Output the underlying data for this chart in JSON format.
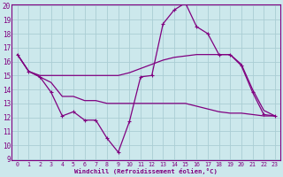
{
  "bg_color": "#cce8ec",
  "line_color": "#800080",
  "grid_color": "#aacdd4",
  "xlabel": "Windchill (Refroidissement éolien,°C)",
  "xlim": [
    -0.5,
    23.5
  ],
  "ylim": [
    9,
    20
  ],
  "yticks": [
    9,
    10,
    11,
    12,
    13,
    14,
    15,
    16,
    17,
    18,
    19,
    20
  ],
  "xticks": [
    0,
    1,
    2,
    3,
    4,
    5,
    6,
    7,
    8,
    9,
    10,
    11,
    12,
    13,
    14,
    15,
    16,
    17,
    18,
    19,
    20,
    21,
    22,
    23
  ],
  "s1_x": [
    0,
    1,
    2,
    3,
    4,
    5,
    6,
    7,
    8,
    9,
    10,
    11,
    12,
    13,
    14,
    15,
    16,
    17,
    18,
    19,
    20,
    21,
    22,
    23
  ],
  "s1_y": [
    16.5,
    15.3,
    14.9,
    13.8,
    12.1,
    12.4,
    11.8,
    11.8,
    10.5,
    9.5,
    11.7,
    14.9,
    15.0,
    18.7,
    19.7,
    20.2,
    18.5,
    18.0,
    16.5,
    16.5,
    15.7,
    13.8,
    12.2,
    12.1
  ],
  "s2_x": [
    0,
    1,
    2,
    3,
    4,
    5,
    6,
    7,
    8,
    9,
    10,
    11,
    12,
    13,
    14,
    15,
    16,
    17,
    18,
    19,
    20,
    21,
    22,
    23
  ],
  "s2_y": [
    16.5,
    15.3,
    15.0,
    15.0,
    15.0,
    15.0,
    15.0,
    15.0,
    15.0,
    15.0,
    15.2,
    15.5,
    15.8,
    16.1,
    16.3,
    16.4,
    16.5,
    16.5,
    16.5,
    16.5,
    15.8,
    14.0,
    12.5,
    12.1
  ],
  "s3_x": [
    0,
    1,
    2,
    3,
    4,
    5,
    6,
    7,
    8,
    9,
    10,
    11,
    12,
    13,
    14,
    15,
    16,
    17,
    18,
    19,
    20,
    21,
    22,
    23
  ],
  "s3_y": [
    16.5,
    15.3,
    14.9,
    14.5,
    13.5,
    13.5,
    13.2,
    13.2,
    13.0,
    13.0,
    13.0,
    13.0,
    13.0,
    13.0,
    13.0,
    13.0,
    12.8,
    12.6,
    12.4,
    12.3,
    12.3,
    12.2,
    12.1,
    12.1
  ]
}
